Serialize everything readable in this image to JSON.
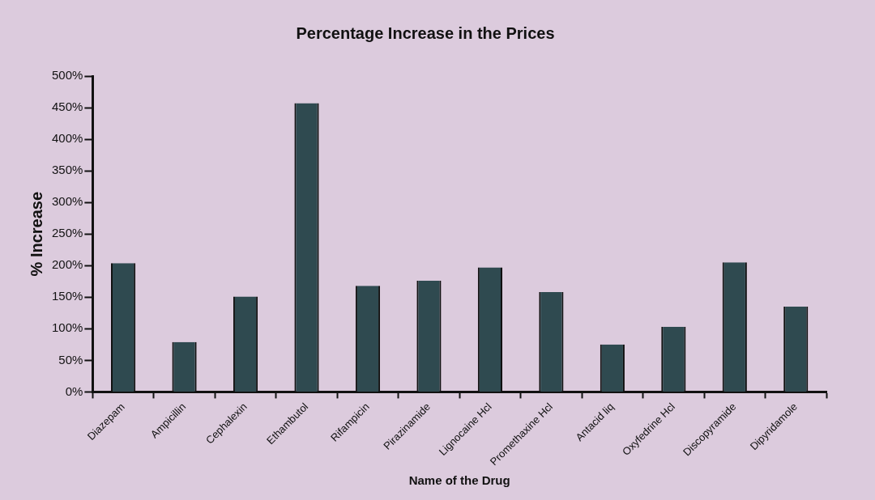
{
  "chart_data": {
    "type": "bar",
    "title": "Percentage Increase in the Prices",
    "xlabel": "Name of the Drug",
    "ylabel": "% Increase",
    "categories": [
      "Diazepam",
      "Ampicillin",
      "Cephalexin",
      "Ethambutol",
      "Rifampicin",
      "Pirazinamide",
      "Lignocaine Hcl",
      "Promethaxine Hcl",
      "Antacid liq",
      "Oxyfedrine Hcl",
      "Discopyramide",
      "Dipyridamole"
    ],
    "values": [
      204,
      79,
      151,
      457,
      168,
      176,
      197,
      158,
      75,
      103,
      205,
      135
    ],
    "color": "#2f4a50",
    "ylim": [
      0,
      500
    ],
    "yticks": [
      {
        "value": 0,
        "label": "0%"
      },
      {
        "value": 50,
        "label": "50%"
      },
      {
        "value": 100,
        "label": "100%"
      },
      {
        "value": 150,
        "label": "150%"
      },
      {
        "value": 200,
        "label": "200%"
      },
      {
        "value": 250,
        "label": "250%"
      },
      {
        "value": 300,
        "label": "300%"
      },
      {
        "value": 350,
        "label": "350%"
      },
      {
        "value": 400,
        "label": "400%"
      },
      {
        "value": 450,
        "label": "450%"
      },
      {
        "value": 500,
        "label": "500%"
      }
    ],
    "grid": false,
    "legend": false
  }
}
